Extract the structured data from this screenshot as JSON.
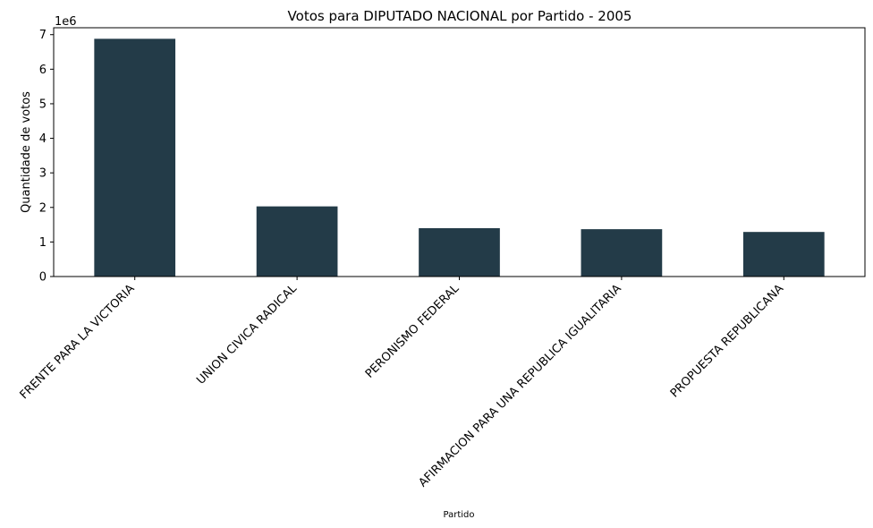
{
  "chart_data": {
    "type": "bar",
    "title": "Votos para DIPUTADO NACIONAL por Partido - 2005",
    "xlabel": "Partido",
    "ylabel": "Quantidade de votos",
    "y_offset_label": "1e6",
    "categories": [
      "FRENTE PARA LA VICTORIA",
      "UNION CIVICA RADICAL",
      "PERONISMO FEDERAL",
      "AFIRMACION PARA UNA REPUBLICA IGUALITARIA",
      "PROPUESTA REPUBLICANA"
    ],
    "values": [
      6880000,
      2030000,
      1400000,
      1370000,
      1290000
    ],
    "ylim": [
      0,
      7200000
    ],
    "yticks": [
      0,
      1000000,
      2000000,
      3000000,
      4000000,
      5000000,
      6000000,
      7000000
    ],
    "ytick_labels": [
      "0",
      "1",
      "2",
      "3",
      "4",
      "5",
      "6",
      "7"
    ],
    "bar_color": "#233b48",
    "grid": false,
    "legend": "none"
  }
}
